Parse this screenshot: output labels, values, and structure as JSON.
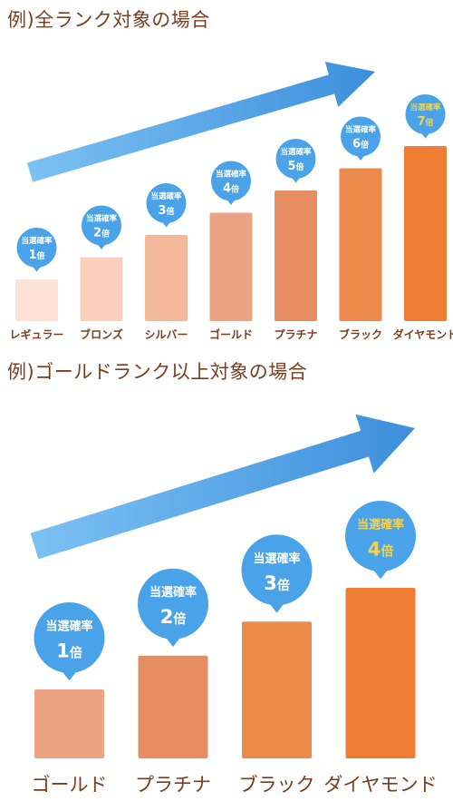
{
  "chart_data": [
    {
      "type": "bar",
      "title": "例)全ランク対象の場合",
      "categories": [
        "レギュラー",
        "ブロンズ",
        "シルバー",
        "ゴールド",
        "プラチナ",
        "ブラック",
        "ダイヤモンド"
      ],
      "values": [
        1,
        2,
        3,
        4,
        5,
        6,
        7
      ],
      "bubble_label": "当選確率",
      "value_unit": "倍",
      "bar_colors": [
        "#fde3d6",
        "#f9d0bb",
        "#f3b89a",
        "#eca384",
        "#e68d61",
        "#ec8a4c",
        "#ef7d33"
      ],
      "bubble_color": "#4aa3e9",
      "highlight_text_color": "#f5d24a",
      "arrow_color": "#3d8fdc"
    },
    {
      "type": "bar",
      "title": "例)ゴールドランク以上対象の場合",
      "categories": [
        "ゴールド",
        "プラチナ",
        "ブラック",
        "ダイヤモンド"
      ],
      "values": [
        1,
        2,
        3,
        4
      ],
      "bubble_label": "当選確率",
      "value_unit": "倍",
      "bar_colors": [
        "#eca384",
        "#e68d61",
        "#ec8a4c",
        "#ef7d33"
      ],
      "bubble_color": "#4aa3e9",
      "highlight_text_color": "#f5d24a",
      "arrow_color": "#3d8fdc"
    }
  ]
}
